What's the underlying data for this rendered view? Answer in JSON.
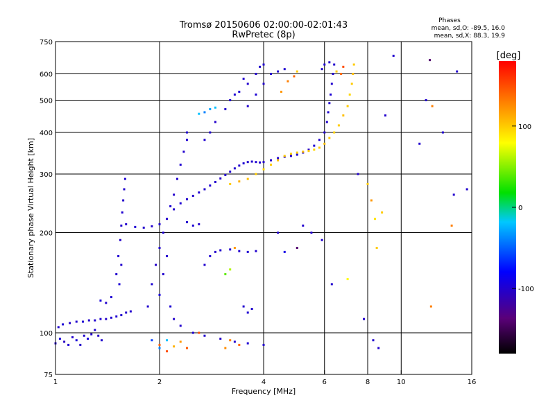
{
  "chart_data": {
    "type": "scatter",
    "title": "Tromsø 20150606 02:00:00-02:01:43",
    "subtitle": "RwPretec (8p)",
    "xlabel": "Frequency [MHz]",
    "ylabel": "Stationary phase Virtual Height [km]",
    "x_scale": "log",
    "y_scale": "log",
    "xlim": [
      1,
      16
    ],
    "ylim": [
      75,
      750
    ],
    "x_ticks": [
      1,
      2,
      4,
      6,
      8,
      10,
      16
    ],
    "y_ticks": [
      75,
      100,
      200,
      300,
      400,
      500,
      600,
      750
    ],
    "x_gridlines": [
      2,
      4,
      6,
      8,
      10
    ],
    "y_gridlines": [
      100,
      200,
      300,
      400,
      500,
      600
    ],
    "stats": {
      "header": "Phases",
      "line_o": "mean, sd,O: -89.5, 16.0",
      "line_x": "mean, sd,X:  88.3, 19.9"
    },
    "colorbar": {
      "label": "[deg]",
      "range": [
        -180,
        180
      ],
      "ticks": [
        100,
        0,
        -100
      ]
    },
    "series": [
      {
        "values": [
          [
            1.0,
            93,
            -100
          ],
          [
            1.03,
            96,
            -95
          ],
          [
            1.06,
            94,
            -105
          ],
          [
            1.09,
            92,
            -98
          ],
          [
            1.12,
            97,
            -100
          ],
          [
            1.15,
            95,
            -96
          ],
          [
            1.18,
            92,
            -102
          ],
          [
            1.21,
            98,
            -100
          ],
          [
            1.24,
            96,
            -94
          ],
          [
            1.27,
            99,
            -101
          ],
          [
            1.3,
            102,
            -99
          ],
          [
            1.33,
            98,
            -103
          ],
          [
            1.36,
            95,
            -100
          ],
          [
            1.02,
            104,
            -100
          ],
          [
            1.05,
            106,
            -97
          ],
          [
            1.1,
            107,
            -102
          ],
          [
            1.15,
            108,
            -100
          ],
          [
            1.2,
            108,
            -98
          ],
          [
            1.25,
            109,
            -101
          ],
          [
            1.3,
            109,
            -100
          ],
          [
            1.35,
            110,
            -99
          ],
          [
            1.4,
            110,
            -102
          ],
          [
            1.45,
            111,
            -100
          ],
          [
            1.5,
            112,
            -98
          ],
          [
            1.55,
            113,
            -100
          ],
          [
            1.6,
            115,
            -101
          ],
          [
            1.65,
            116,
            -100
          ],
          [
            1.35,
            125,
            -95
          ],
          [
            1.4,
            123,
            -100
          ],
          [
            1.45,
            128,
            -98
          ],
          [
            1.5,
            150,
            -100
          ],
          [
            1.52,
            170,
            -98
          ],
          [
            1.54,
            190,
            -102
          ],
          [
            1.55,
            210,
            -100
          ],
          [
            1.56,
            230,
            -99
          ],
          [
            1.57,
            250,
            -101
          ],
          [
            1.58,
            270,
            -100
          ],
          [
            1.59,
            290,
            -98
          ],
          [
            1.55,
            160,
            -100
          ],
          [
            1.53,
            140,
            -97
          ],
          [
            1.6,
            212,
            -100
          ],
          [
            1.7,
            208,
            -98
          ],
          [
            1.8,
            207,
            -101
          ],
          [
            1.9,
            209,
            -100
          ],
          [
            2.0,
            212,
            -99
          ],
          [
            1.85,
            120,
            -100
          ],
          [
            1.9,
            140,
            -98
          ],
          [
            1.95,
            160,
            -102
          ],
          [
            2.0,
            180,
            -100
          ],
          [
            2.05,
            200,
            -99
          ],
          [
            2.1,
            220,
            -100
          ],
          [
            2.15,
            240,
            -98
          ],
          [
            2.2,
            260,
            -101
          ],
          [
            2.25,
            290,
            -100
          ],
          [
            2.3,
            320,
            -99
          ],
          [
            2.35,
            350,
            -100
          ],
          [
            2.4,
            380,
            -98
          ],
          [
            2.4,
            400,
            -101
          ],
          [
            2.0,
            130,
            -95
          ],
          [
            2.05,
            150,
            -100
          ],
          [
            2.1,
            170,
            -100
          ],
          [
            2.15,
            120,
            -98
          ],
          [
            2.2,
            110,
            -101
          ],
          [
            2.3,
            105,
            -100
          ],
          [
            2.5,
            100,
            -99
          ],
          [
            2.7,
            98,
            -100
          ],
          [
            3.0,
            96,
            -102
          ],
          [
            3.3,
            94,
            -100
          ],
          [
            3.6,
            93,
            -98
          ],
          [
            4.0,
            92,
            -100
          ],
          [
            1.9,
            95,
            -60
          ],
          [
            2.0,
            90,
            -40
          ],
          [
            2.1,
            95,
            -20
          ],
          [
            2.0,
            92,
            140
          ],
          [
            2.1,
            88,
            150
          ],
          [
            2.2,
            91,
            110
          ],
          [
            2.3,
            94,
            120
          ],
          [
            2.4,
            90,
            145
          ],
          [
            3.2,
            95,
            130
          ],
          [
            3.4,
            92,
            140
          ],
          [
            3.1,
            90,
            125
          ],
          [
            2.6,
            100,
            150
          ],
          [
            2.2,
            235,
            -100
          ],
          [
            2.3,
            245,
            -98
          ],
          [
            2.4,
            252,
            -100
          ],
          [
            2.5,
            258,
            -101
          ],
          [
            2.6,
            264,
            -99
          ],
          [
            2.7,
            270,
            -100
          ],
          [
            2.8,
            277,
            -98
          ],
          [
            2.9,
            284,
            -100
          ],
          [
            3.0,
            291,
            -102
          ],
          [
            3.1,
            298,
            -100
          ],
          [
            3.2,
            305,
            -99
          ],
          [
            3.3,
            312,
            -100
          ],
          [
            3.4,
            318,
            -100
          ],
          [
            3.5,
            323,
            -98
          ],
          [
            3.6,
            326,
            -101
          ],
          [
            3.7,
            327,
            -100
          ],
          [
            3.8,
            326,
            -99
          ],
          [
            3.9,
            325,
            -100
          ],
          [
            4.0,
            326,
            -102
          ],
          [
            4.2,
            330,
            -100
          ],
          [
            4.4,
            335,
            -98
          ],
          [
            4.6,
            338,
            -100
          ],
          [
            4.8,
            340,
            -101
          ],
          [
            5.0,
            343,
            -100
          ],
          [
            5.2,
            348,
            -99
          ],
          [
            5.4,
            355,
            -100
          ],
          [
            5.6,
            365,
            -98
          ],
          [
            5.8,
            380,
            -100
          ],
          [
            6.0,
            400,
            -101
          ],
          [
            6.1,
            430,
            -100
          ],
          [
            6.15,
            460,
            -99
          ],
          [
            6.2,
            490,
            -100
          ],
          [
            6.25,
            520,
            -98
          ],
          [
            6.3,
            560,
            -100
          ],
          [
            6.35,
            600,
            -101
          ],
          [
            6.4,
            640,
            -100
          ],
          [
            3.2,
            280,
            100
          ],
          [
            3.4,
            285,
            110
          ],
          [
            3.6,
            290,
            105
          ],
          [
            3.8,
            300,
            100
          ],
          [
            4.0,
            310,
            95
          ],
          [
            4.2,
            320,
            100
          ],
          [
            4.4,
            330,
            105
          ],
          [
            4.6,
            340,
            100
          ],
          [
            4.8,
            345,
            98
          ],
          [
            5.0,
            348,
            100
          ],
          [
            5.2,
            350,
            105
          ],
          [
            5.4,
            352,
            100
          ],
          [
            5.6,
            355,
            95
          ],
          [
            5.8,
            360,
            100
          ],
          [
            6.0,
            370,
            105
          ],
          [
            6.2,
            385,
            100
          ],
          [
            6.4,
            400,
            98
          ],
          [
            6.6,
            420,
            100
          ],
          [
            6.8,
            450,
            105
          ],
          [
            7.0,
            480,
            100
          ],
          [
            7.1,
            520,
            95
          ],
          [
            7.2,
            560,
            100
          ],
          [
            7.25,
            600,
            105
          ],
          [
            7.3,
            640,
            100
          ],
          [
            2.7,
            160,
            -100
          ],
          [
            2.8,
            170,
            -98
          ],
          [
            2.9,
            175,
            -101
          ],
          [
            3.0,
            177,
            -100
          ],
          [
            3.2,
            178,
            -99
          ],
          [
            3.4,
            176,
            -100
          ],
          [
            3.6,
            175,
            -98
          ],
          [
            3.8,
            176,
            -100
          ],
          [
            3.1,
            150,
            40
          ],
          [
            3.2,
            155,
            60
          ],
          [
            3.5,
            120,
            -100
          ],
          [
            3.6,
            115,
            -98
          ],
          [
            3.7,
            118,
            -100
          ],
          [
            3.3,
            180,
            120
          ],
          [
            2.4,
            215,
            -100
          ],
          [
            2.5,
            210,
            -98
          ],
          [
            2.6,
            212,
            -101
          ],
          [
            3.2,
            500,
            -100
          ],
          [
            3.4,
            530,
            -98
          ],
          [
            3.6,
            560,
            -100
          ],
          [
            3.8,
            600,
            -101
          ],
          [
            3.9,
            630,
            -100
          ],
          [
            4.0,
            640,
            -99
          ],
          [
            3.5,
            580,
            -100
          ],
          [
            3.3,
            520,
            -98
          ],
          [
            3.1,
            470,
            -100
          ],
          [
            2.9,
            430,
            -101
          ],
          [
            2.8,
            400,
            -100
          ],
          [
            2.7,
            380,
            -99
          ],
          [
            3.6,
            480,
            -100
          ],
          [
            3.8,
            520,
            -98
          ],
          [
            4.0,
            560,
            -100
          ],
          [
            4.2,
            600,
            -101
          ],
          [
            4.4,
            610,
            -100
          ],
          [
            4.6,
            620,
            -99
          ],
          [
            2.6,
            455,
            -20
          ],
          [
            2.7,
            460,
            -40
          ],
          [
            2.8,
            470,
            -30
          ],
          [
            2.9,
            475,
            -20
          ],
          [
            4.5,
            530,
            120
          ],
          [
            4.7,
            570,
            130
          ],
          [
            4.9,
            590,
            140
          ],
          [
            5.0,
            610,
            100
          ],
          [
            5.9,
            620,
            -100
          ],
          [
            6.0,
            640,
            -98
          ],
          [
            6.2,
            650,
            -100
          ],
          [
            6.5,
            610,
            100
          ],
          [
            6.7,
            600,
            140
          ],
          [
            6.8,
            630,
            150
          ],
          [
            8.4,
            220,
            90
          ],
          [
            8.5,
            180,
            100
          ],
          [
            8.6,
            90,
            -100
          ],
          [
            9.0,
            450,
            -100
          ],
          [
            9.5,
            680,
            -100
          ],
          [
            11.3,
            370,
            -100
          ],
          [
            11.8,
            500,
            -100
          ],
          [
            12.1,
            660,
            -140
          ],
          [
            12.2,
            120,
            130
          ],
          [
            12.3,
            480,
            130
          ],
          [
            13.2,
            400,
            -100
          ],
          [
            14.5,
            610,
            -100
          ],
          [
            14.2,
            260,
            -100
          ],
          [
            14.0,
            210,
            130
          ],
          [
            15.5,
            270,
            -100
          ],
          [
            4.4,
            200,
            -100
          ],
          [
            5.2,
            210,
            -100
          ],
          [
            5.5,
            200,
            -100
          ],
          [
            5.9,
            190,
            -100
          ],
          [
            6.3,
            140,
            -100
          ],
          [
            7.0,
            145,
            80
          ],
          [
            7.5,
            300,
            -100
          ],
          [
            8.0,
            280,
            100
          ],
          [
            8.2,
            250,
            120
          ],
          [
            8.8,
            230,
            100
          ],
          [
            5.0,
            180,
            -140
          ],
          [
            4.6,
            175,
            -90
          ],
          [
            7.8,
            110,
            -100
          ],
          [
            8.3,
            95,
            -100
          ]
        ]
      }
    ]
  }
}
